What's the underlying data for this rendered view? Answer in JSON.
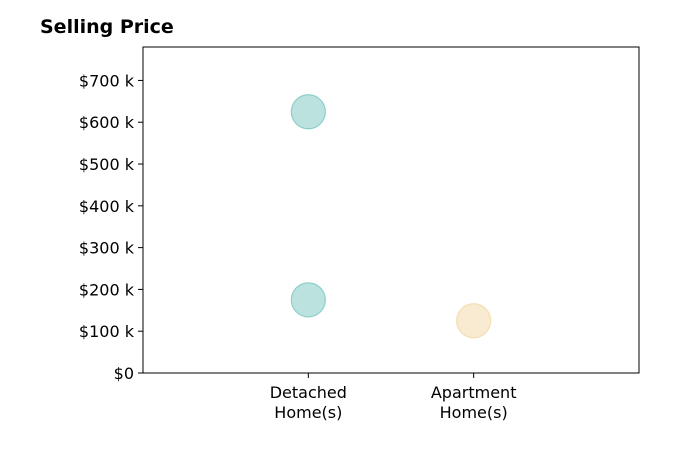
{
  "chart_data": {
    "type": "scatter",
    "title": "Selling Price",
    "xlabel": "",
    "ylabel": "",
    "categories": [
      [
        "Detached",
        "Home(s)"
      ],
      [
        "Apartment",
        "Home(s)"
      ]
    ],
    "x_range": [
      -1,
      2
    ],
    "y_ticks": [
      0,
      100,
      200,
      300,
      400,
      500,
      600,
      700
    ],
    "y_tick_labels": [
      "$0",
      "$100 k",
      "$200 k",
      "$300 k",
      "$400 k",
      "$500 k",
      "$600 k",
      "$700 k"
    ],
    "ylim": [
      0,
      780
    ],
    "grid": false,
    "points": [
      {
        "category_index": 0,
        "y": 625,
        "color": "#8ecfc9"
      },
      {
        "category_index": 0,
        "y": 175,
        "color": "#8ecfc9"
      },
      {
        "category_index": 1,
        "y": 125,
        "color": "#f5deb3"
      }
    ]
  }
}
